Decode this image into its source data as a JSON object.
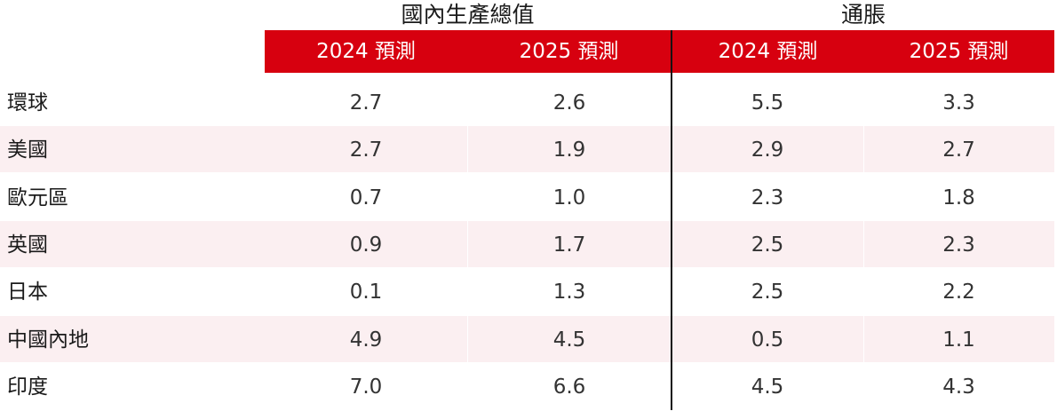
{
  "chart_data": {
    "type": "table",
    "column_groups": [
      {
        "label": "國內生產總值",
        "columns": [
          "2024 預測",
          "2025 預測"
        ]
      },
      {
        "label": "通脹",
        "columns": [
          "2024 預測",
          "2025 預測"
        ]
      }
    ],
    "rows": [
      {
        "label": "環球",
        "values": [
          "2.7",
          "2.6",
          "5.5",
          "3.3"
        ]
      },
      {
        "label": "美國",
        "values": [
          "2.7",
          "1.9",
          "2.9",
          "2.7"
        ]
      },
      {
        "label": "歐元區",
        "values": [
          "0.7",
          "1.0",
          "2.3",
          "1.8"
        ]
      },
      {
        "label": "英國",
        "values": [
          "0.9",
          "1.7",
          "2.5",
          "2.3"
        ]
      },
      {
        "label": "日本",
        "values": [
          "0.1",
          "1.3",
          "2.5",
          "2.2"
        ]
      },
      {
        "label": "中國內地",
        "values": [
          "4.9",
          "4.5",
          "0.5",
          "1.1"
        ]
      },
      {
        "label": "印度",
        "values": [
          "7.0",
          "6.6",
          "4.5",
          "4.3"
        ]
      }
    ]
  },
  "colors": {
    "header_background": "#d7000f",
    "header_text": "#ffffff",
    "alternate_row": "#fbeff1",
    "divider": "#111111"
  }
}
